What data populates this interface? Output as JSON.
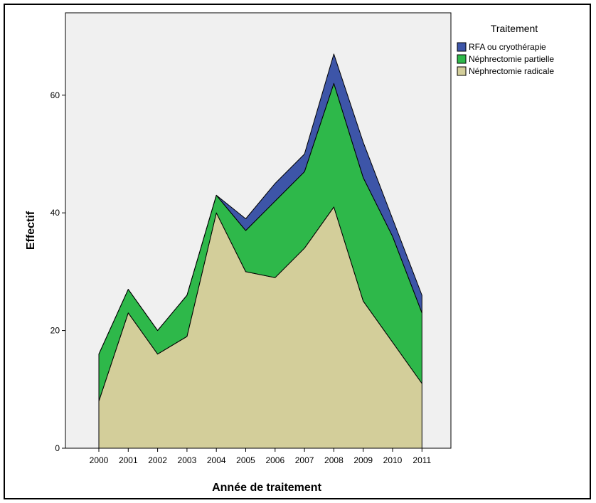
{
  "chart_data": {
    "type": "area",
    "stacked": true,
    "x": [
      "2000",
      "2001",
      "2002",
      "2003",
      "2004",
      "2005",
      "2006",
      "2007",
      "2008",
      "2009",
      "2010",
      "2011"
    ],
    "series": [
      {
        "name": "Néphrectomie radicale",
        "color": "#d3ce9a",
        "values": [
          8,
          23,
          16,
          19,
          40,
          30,
          29,
          34,
          41,
          25,
          18,
          11
        ]
      },
      {
        "name": "Néphrectomie partielle",
        "color": "#2eb84a",
        "values": [
          8,
          4,
          4,
          7,
          3,
          7,
          13,
          13,
          21,
          21,
          18,
          12
        ]
      },
      {
        "name": "RFA ou cryothérapie",
        "color": "#3d55a8",
        "values": [
          0,
          0,
          0,
          0,
          0,
          2,
          3,
          3,
          5,
          6,
          3,
          3
        ]
      }
    ],
    "xlabel": "Année de traitement",
    "ylabel": "Effectif",
    "ylim": [
      0,
      74
    ],
    "yticks": [
      0,
      20,
      40,
      60
    ],
    "legend": {
      "title": "Traitement",
      "position": "top-right",
      "order": [
        "RFA ou cryothérapie",
        "Néphrectomie partielle",
        "Néphrectomie radicale"
      ]
    },
    "plot_background": "#f0f0f0",
    "grid": false
  }
}
